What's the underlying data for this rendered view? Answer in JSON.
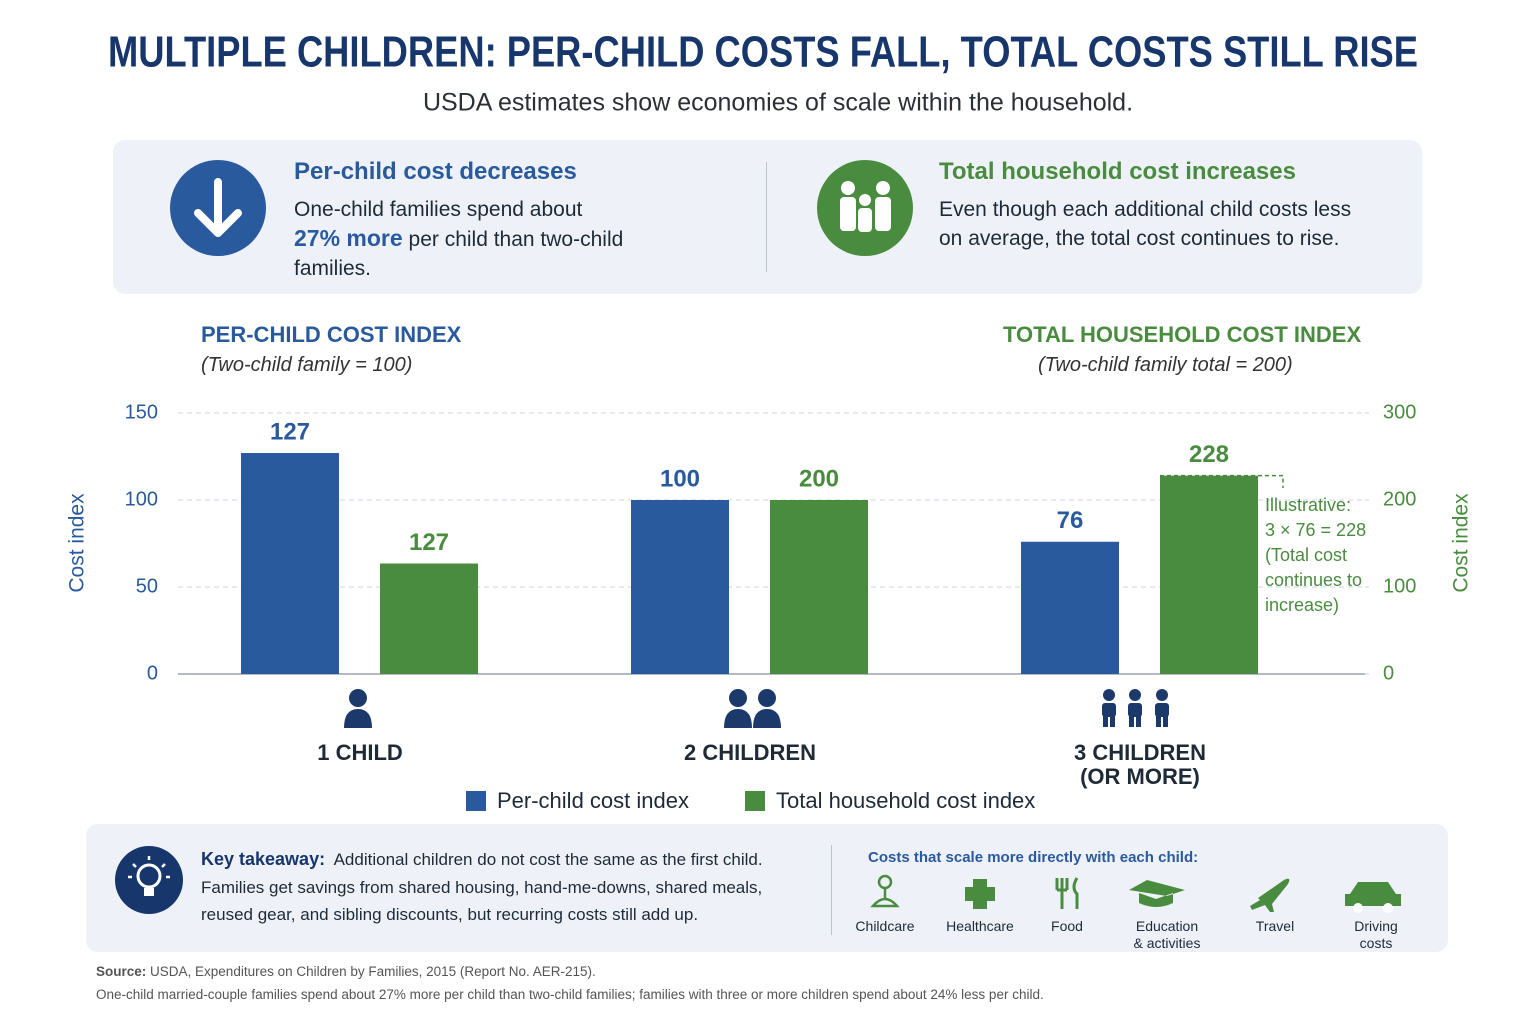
{
  "header": {
    "title": "MULTIPLE CHILDREN: PER-CHILD COSTS FALL, TOTAL COSTS STILL RISE",
    "subtitle": "USDA estimates show economies of scale within the household."
  },
  "callouts": [
    {
      "title": "Per-child cost decreases",
      "text_before": "One-child families spend about",
      "highlight": "27% more",
      "text_after": "per child than two-child families."
    },
    {
      "title": "Total household cost increases",
      "text": "Even though each additional child costs less on average, the total cost continues to rise."
    }
  ],
  "chart_data": {
    "type": "bar",
    "y_heading": "PER-CHILD COST INDEX",
    "y_subheading": "(Two-child family = 100)",
    "y2_heading": "TOTAL HOUSEHOLD COST INDEX",
    "y2_subheading": "(Two-child family total = 200)",
    "ylabel": "Cost index",
    "y2label": "Cost index",
    "categories": [
      "1 CHILD",
      "2 CHILDREN",
      "3 CHILDREN\n(OR MORE)"
    ],
    "series": [
      {
        "name": "Per-child cost index",
        "color": "#2a5a9e",
        "values": [
          127,
          100,
          76
        ]
      },
      {
        "name": "Total household cost index",
        "color": "#4a8c3f",
        "values": [
          127,
          200,
          228
        ],
        "axis": "y2"
      }
    ],
    "ylim": [
      0,
      150
    ],
    "yticks": [
      0,
      50,
      100,
      150
    ],
    "y2lim": [
      0,
      300
    ],
    "y2ticks": [
      0,
      100,
      200,
      300
    ],
    "grid": true,
    "legend": "bottom",
    "annotation": "Illustrative:\n3 × 76 = 228\n(Total cost\ncontinues to\nincrease)"
  },
  "takeaway": {
    "label": "Key takeaway:",
    "text": "Additional children do not cost the same as the first child. Families get savings from shared housing, hand-me-downs, shared meals, reused gear, and sibling discounts, but recurring costs still add up."
  },
  "scaling_costs": {
    "title": "Costs that scale more directly with each child:",
    "items": [
      "Childcare",
      "Healthcare",
      "Food",
      "Education\n& activities",
      "Travel",
      "Driving\ncosts"
    ]
  },
  "source": {
    "label": "Source:",
    "text": "USDA, Expenditures on Children by Families, 2015 (Report No. AER-215).",
    "note": "One-child married-couple families spend about 27% more per child than two-child families; families with three or more children spend about 24% less per child."
  }
}
